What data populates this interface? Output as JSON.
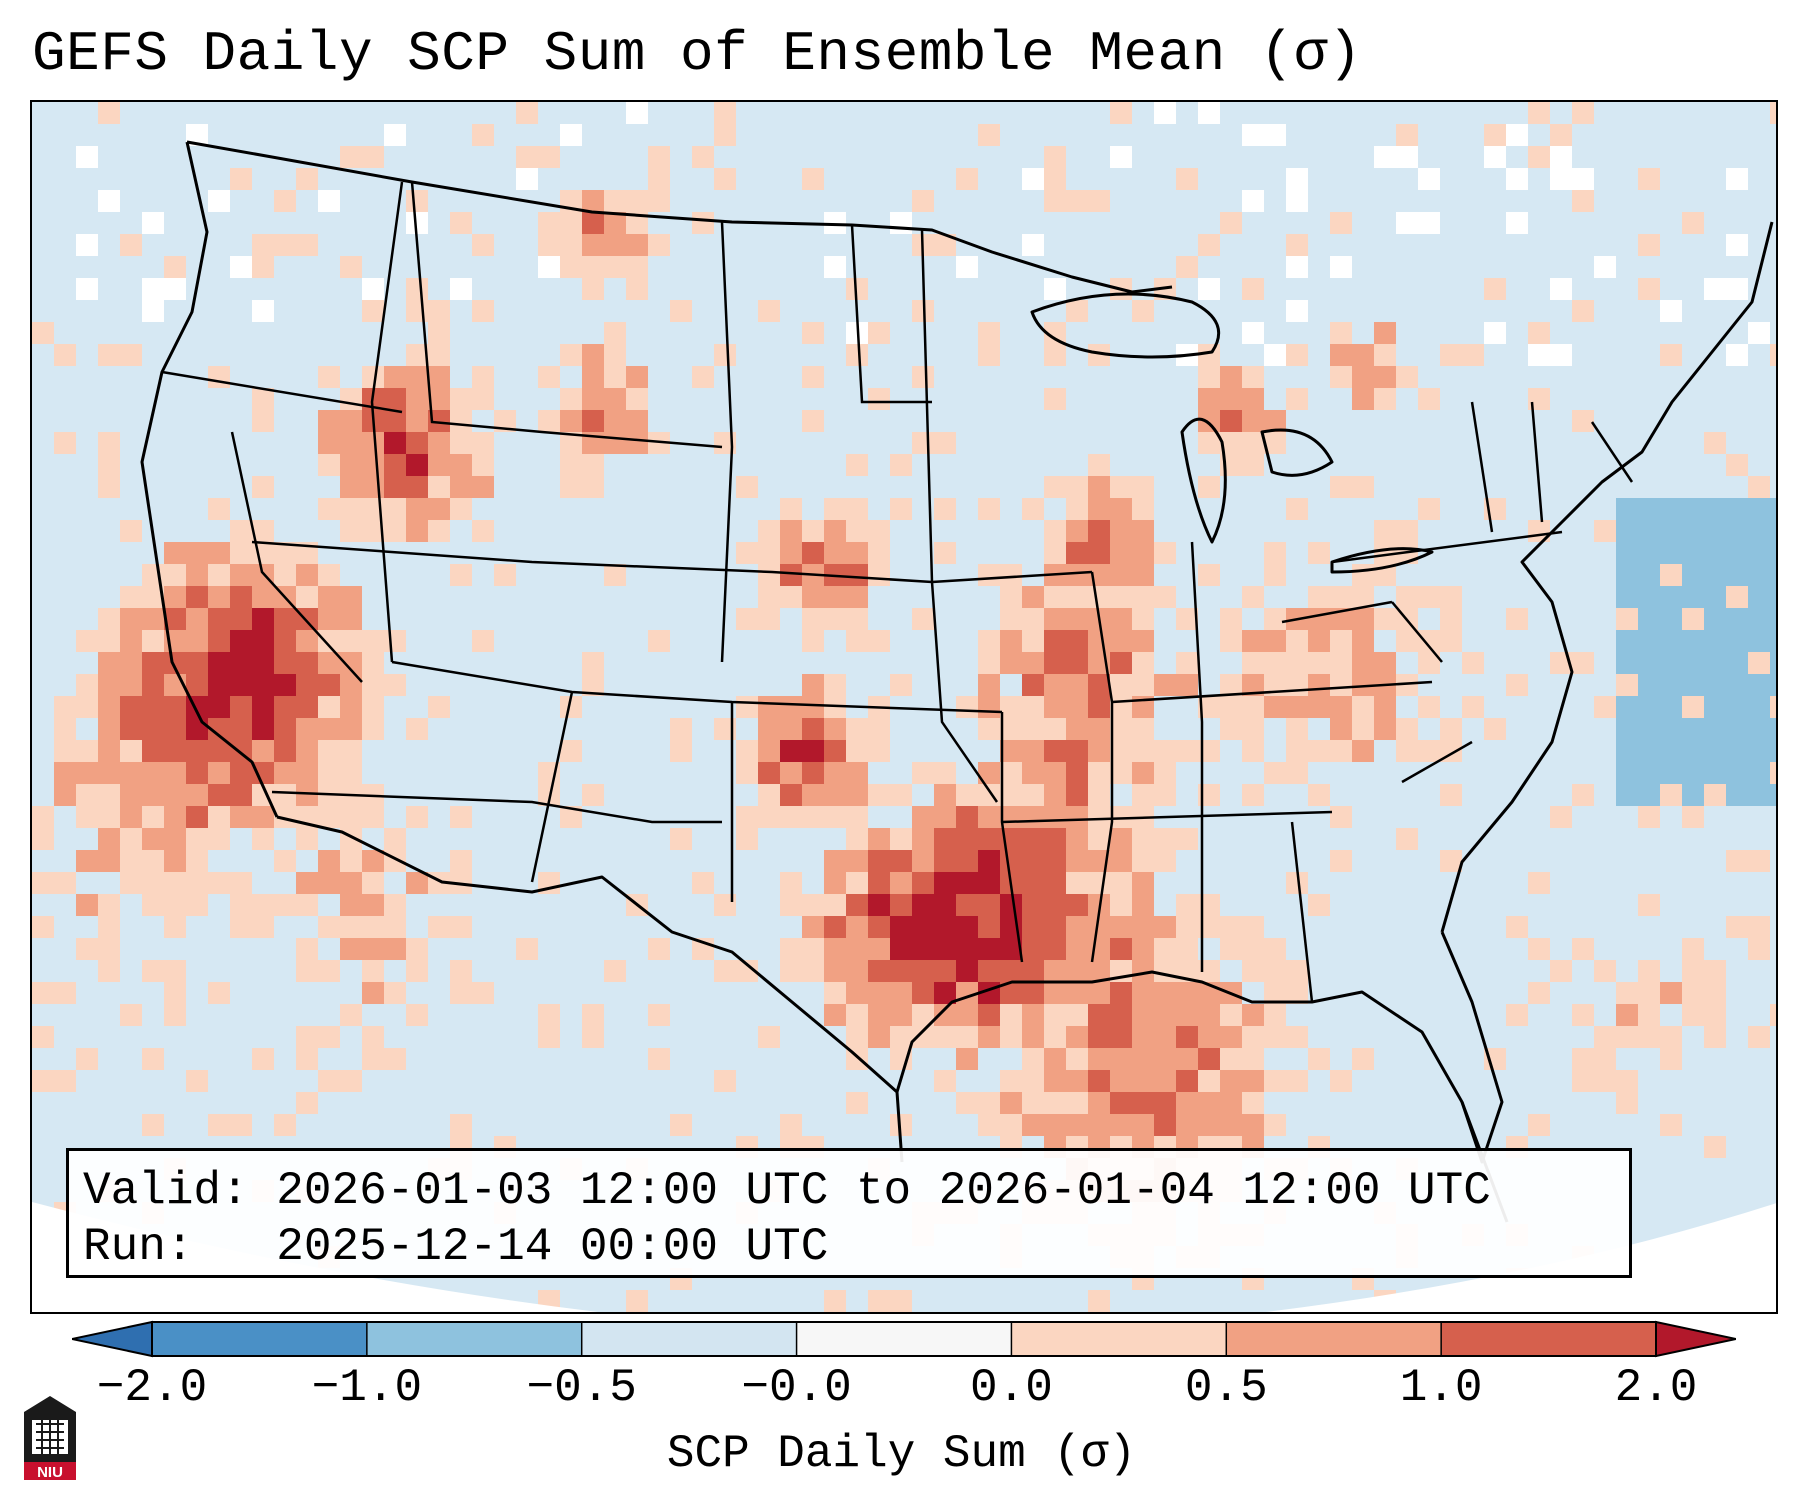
{
  "title": "GEFS Daily SCP Sum of Ensemble Mean (σ)",
  "info": {
    "valid_label": "Valid:",
    "valid_value": "2026-01-03 12:00 UTC to 2026-01-04 12:00 UTC",
    "run_label": "Run:",
    "run_value": "2025-12-14 00:00 UTC"
  },
  "colorbar": {
    "label": "SCP Daily Sum (σ)",
    "ticks": [
      "−2.0",
      "−1.0",
      "−0.5",
      "−0.0",
      "0.0",
      "0.5",
      "1.0",
      "2.0"
    ],
    "bins": [
      {
        "from": -2.0,
        "to": -1.0,
        "color": "#4a90c6"
      },
      {
        "from": -1.0,
        "to": -0.5,
        "color": "#8ec2de"
      },
      {
        "from": -0.5,
        "to": -0.0,
        "color": "#d3e5f1"
      },
      {
        "from": -0.0,
        "to": 0.0,
        "color": "#f7f7f7"
      },
      {
        "from": 0.0,
        "to": 0.5,
        "color": "#fbd6c1"
      },
      {
        "from": 0.5,
        "to": 1.0,
        "color": "#f1a183"
      },
      {
        "from": 1.0,
        "to": 2.0,
        "color": "#d6604d"
      }
    ],
    "under_color": "#2f6fb0",
    "over_color": "#b2182b"
  },
  "map": {
    "region": "Contiguous United States",
    "colors": {
      "slightly_negative": "#d3e5f1",
      "neutral": "#ffffff",
      "slightly_positive": "#fbd6c1",
      "moderate_positive": "#f1a183",
      "strong_positive": "#d6604d",
      "extreme_positive": "#b2182b",
      "moderate_negative": "#8ec2de"
    }
  },
  "logo": {
    "text": "NIU"
  }
}
